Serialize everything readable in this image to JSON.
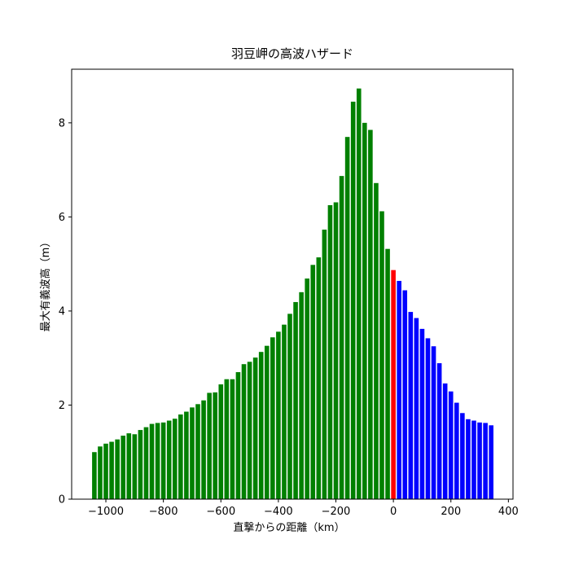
{
  "chart_data": {
    "type": "bar",
    "title": "羽豆岬の高波ハザード",
    "xlabel": "直撃からの距離（km）",
    "ylabel": "最大有義波高（m）",
    "series": [
      {
        "color": "#008000",
        "x": [
          -1040,
          -1020,
          -1000,
          -980,
          -960,
          -940,
          -920,
          -900,
          -880,
          -860,
          -840,
          -820,
          -800,
          -780,
          -760,
          -740,
          -720,
          -700,
          -680,
          -660,
          -640,
          -620,
          -600,
          -580,
          -560,
          -540,
          -520,
          -500,
          -480,
          -460,
          -440,
          -420,
          -400,
          -380,
          -360,
          -340,
          -320,
          -300,
          -280,
          -260,
          -240,
          -220,
          -200,
          -180,
          -160,
          -140,
          -120,
          -100,
          -80,
          -60,
          -40,
          -20
        ],
        "values": [
          1.0,
          1.12,
          1.18,
          1.22,
          1.27,
          1.35,
          1.4,
          1.38,
          1.47,
          1.53,
          1.6,
          1.62,
          1.63,
          1.67,
          1.71,
          1.8,
          1.86,
          1.95,
          2.02,
          2.1,
          2.26,
          2.27,
          2.44,
          2.55,
          2.55,
          2.7,
          2.87,
          2.92,
          3.01,
          3.13,
          3.26,
          3.44,
          3.56,
          3.71,
          3.94,
          4.19,
          4.4,
          4.69,
          4.98,
          5.14,
          5.73,
          6.25,
          6.31,
          6.87,
          7.7,
          8.45,
          8.73,
          8.0,
          7.85,
          6.72,
          6.12,
          5.32
        ]
      },
      {
        "color": "#ff0000",
        "x": [
          0
        ],
        "values": [
          4.87
        ]
      },
      {
        "color": "#0000ff",
        "x": [
          20,
          40,
          60,
          80,
          100,
          120,
          140,
          160,
          180,
          200,
          220,
          240,
          260,
          280,
          300,
          320,
          340
        ],
        "values": [
          4.64,
          4.44,
          3.98,
          3.85,
          3.62,
          3.42,
          3.25,
          2.89,
          2.46,
          2.29,
          2.05,
          1.83,
          1.7,
          1.67,
          1.63,
          1.62,
          1.57
        ]
      }
    ],
    "xlim": [
      -1119,
      416
    ],
    "ylim": [
      0,
      9.14
    ],
    "xticks": [
      {
        "value": -1000,
        "label": "−1000"
      },
      {
        "value": -800,
        "label": "−800"
      },
      {
        "value": -600,
        "label": "−600"
      },
      {
        "value": -400,
        "label": "−400"
      },
      {
        "value": -200,
        "label": "−200"
      },
      0,
      200,
      400
    ],
    "yticks": [
      0,
      2,
      4,
      6,
      8
    ]
  }
}
